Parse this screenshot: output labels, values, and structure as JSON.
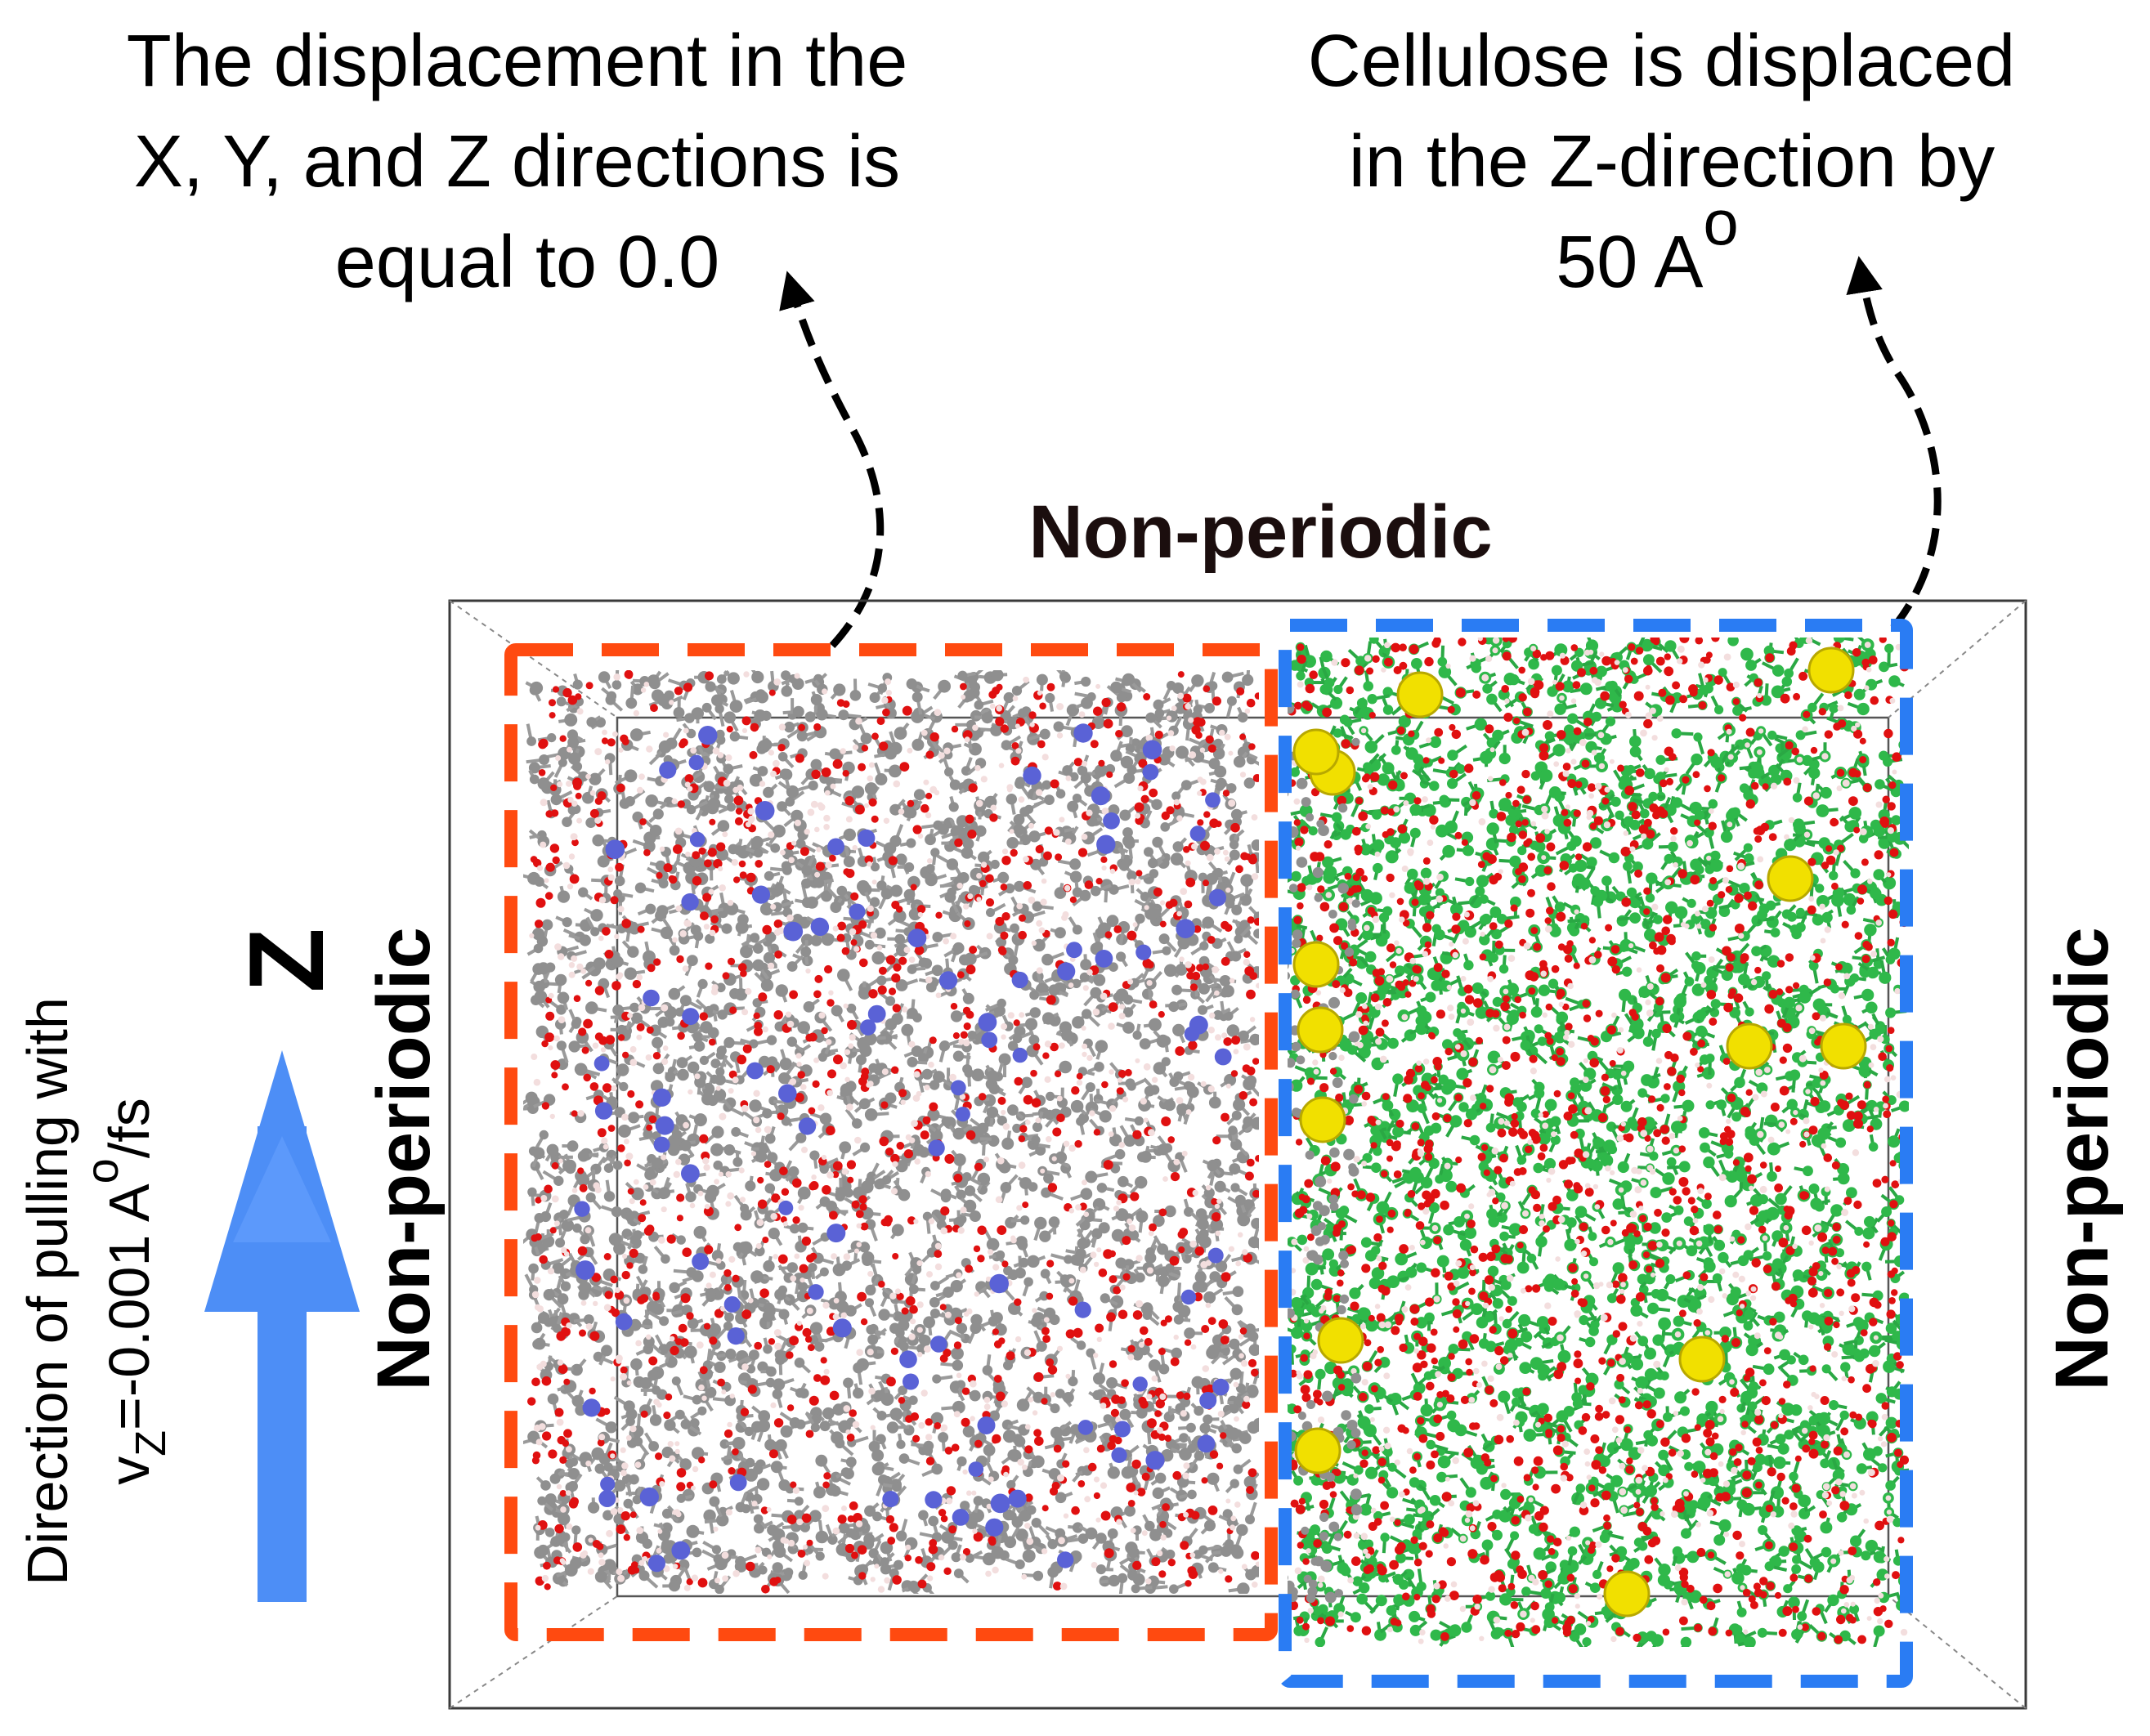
{
  "annotations": {
    "left_note": {
      "lines": [
        "The displacement in the",
        "X, Y, and Z directions is",
        "equal to 0.0"
      ]
    },
    "right_note": {
      "line1": "Cellulose is displaced",
      "line2": "in the Z-direction by",
      "line3_value": "50 A",
      "line3_sup": "o"
    }
  },
  "boundaries": {
    "top": "Non-periodic",
    "left": "Non-periodic",
    "right": "Non-periodic"
  },
  "axis": {
    "label": "Z",
    "arrow_color": "#4d8ef6"
  },
  "pull_label": {
    "line1": "Direction of pulling with",
    "v": "v",
    "sub": "Z",
    "eq": "=-0.001 A",
    "sup": "o",
    "unit": "/fs"
  },
  "regions": {
    "left_box_color": "#ff4a10",
    "right_box_color": "#2a7cf3"
  },
  "atom_colors": {
    "carbon_gray": "#8f8f8f",
    "oxygen_red": "#e01010",
    "hydrogen_white": "#f3dede",
    "nitrogen_blue": "#5a62d6",
    "carbon_green": "#2fb84a",
    "sulfur_yellow": "#f1e000"
  }
}
